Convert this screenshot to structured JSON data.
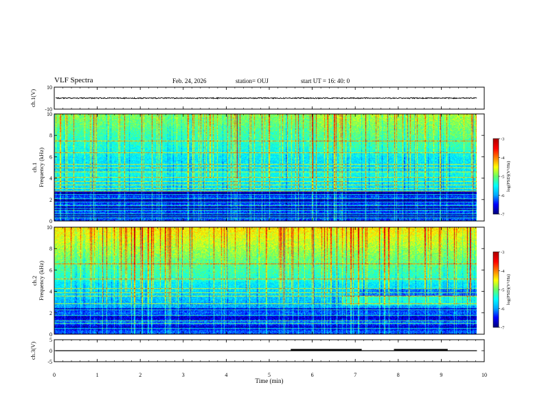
{
  "header": {
    "title": "VLF Spectra",
    "date": "Feb. 24, 2026",
    "station": "station= OUJ",
    "start": "start UT =   16: 40: 0"
  },
  "chart_data": [
    {
      "type": "line",
      "panel": "ch1-waveform",
      "ylabel": "ch.1(V)",
      "ylim": [
        -10,
        10
      ],
      "ytick_labels": [
        "10",
        "-10"
      ],
      "baseline_value": 0
    },
    {
      "type": "heatmap",
      "panel": "ch1-spectrogram",
      "ylabel": "ch.1\nFrequency (kHz)",
      "ylabel_lines": [
        "ch.1",
        "Frequency (kHz)"
      ],
      "ylim": [
        0,
        10
      ],
      "ytick_labels": [
        "10",
        "8",
        "6",
        "4",
        "2",
        "0"
      ],
      "colorbar": {
        "label": "log(PSD)(V²/Hz)",
        "range": [
          -7,
          -3
        ],
        "tick_labels": [
          "-3",
          "-4",
          "-5",
          "-6",
          "-7"
        ]
      },
      "persistent_lines_khz": [
        0.3,
        0.5,
        0.7,
        1.0,
        1.2,
        1.5,
        1.8,
        2.1,
        2.5,
        2.8,
        3.1,
        3.4,
        3.7,
        4.1,
        4.6,
        5.0,
        5.3,
        6.4,
        7.5
      ]
    },
    {
      "type": "heatmap",
      "panel": "ch2-spectrogram",
      "ylabel": "ch.2\nFrequency (kHz)",
      "ylabel_lines": [
        "ch.2",
        "Frequency (kHz)"
      ],
      "ylim": [
        0,
        10
      ],
      "ytick_labels": [
        "10",
        "8",
        "6",
        "4",
        "2",
        "0"
      ],
      "colorbar": {
        "label": "log(PSD)(V²/Hz)",
        "range": [
          -7,
          -3
        ],
        "tick_labels": [
          "-3",
          "-4",
          "-5",
          "-6",
          "-7"
        ]
      },
      "persistent_lines_khz": [
        0.6,
        1.0,
        1.3,
        1.8,
        2.3,
        2.9,
        3.6,
        3.9,
        4.3,
        5.2,
        6.6
      ]
    },
    {
      "type": "line",
      "panel": "ch3-waveform",
      "ylabel": "ch.3(V)",
      "ylim": [
        -5,
        5
      ],
      "ytick_labels": [
        "5",
        "0",
        "-5"
      ],
      "baseline_value": 0,
      "high_segments_min": [
        [
          5.5,
          7.15
        ],
        [
          7.9,
          9.15
        ]
      ]
    }
  ],
  "xaxis": {
    "label": "Time (min)",
    "range": [
      0,
      10
    ],
    "ticks": [
      0,
      1,
      2,
      3,
      4,
      5,
      6,
      7,
      8,
      9,
      10
    ],
    "data_end": 9.83
  },
  "colors": {
    "colormap": [
      "#00007f",
      "#0000ff",
      "#00aaff",
      "#00ffff",
      "#66ff66",
      "#ffff00",
      "#ff7f00",
      "#ff0000",
      "#b00000"
    ]
  }
}
